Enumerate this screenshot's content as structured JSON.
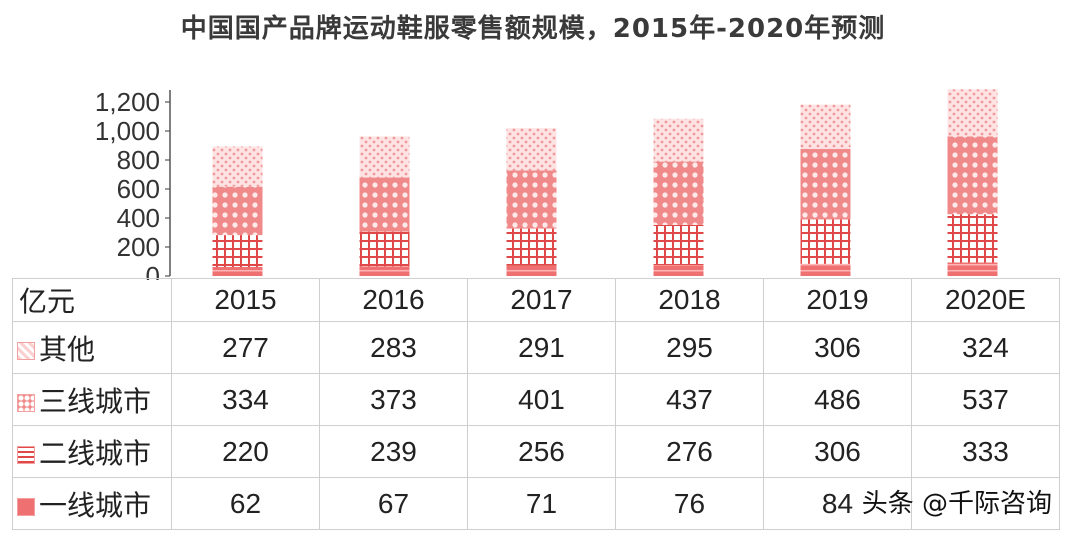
{
  "chart_data": {
    "type": "bar",
    "stacked": true,
    "title": "中国国产品牌运动鞋服零售额规模，2015年-2020年预测",
    "unit": "亿元",
    "categories": [
      "2015",
      "2016",
      "2017",
      "2018",
      "2019",
      "2020E"
    ],
    "ylim": [
      0,
      1200
    ],
    "yticks": [
      "0",
      "200",
      "400",
      "600",
      "800",
      "1,000",
      "1,200"
    ],
    "series": [
      {
        "name": "一线城市",
        "values": [
          62,
          67,
          71,
          76,
          84,
          93
        ],
        "color": "#ef7070"
      },
      {
        "name": "二线城市",
        "values": [
          220,
          239,
          256,
          276,
          306,
          333
        ],
        "color": "#e04848"
      },
      {
        "name": "三线城市",
        "values": [
          334,
          373,
          401,
          437,
          486,
          537
        ],
        "color": "#f08a8a"
      },
      {
        "name": "其他",
        "values": [
          277,
          283,
          291,
          295,
          306,
          324
        ],
        "color": "#f7b4b4"
      }
    ],
    "table_rows_order": [
      "其他",
      "三线城市",
      "二线城市",
      "一线城市"
    ],
    "table_values": {
      "其他": [
        "277",
        "283",
        "291",
        "295",
        "306",
        "324"
      ],
      "三线城市": [
        "334",
        "373",
        "401",
        "437",
        "486",
        "537"
      ],
      "二线城市": [
        "220",
        "239",
        "256",
        "276",
        "306",
        "333"
      ],
      "一线城市": [
        "62",
        "67",
        "71",
        "76",
        "84",
        ""
      ]
    },
    "grid": false,
    "legend": "table"
  },
  "watermark": "头条 @千际咨询"
}
